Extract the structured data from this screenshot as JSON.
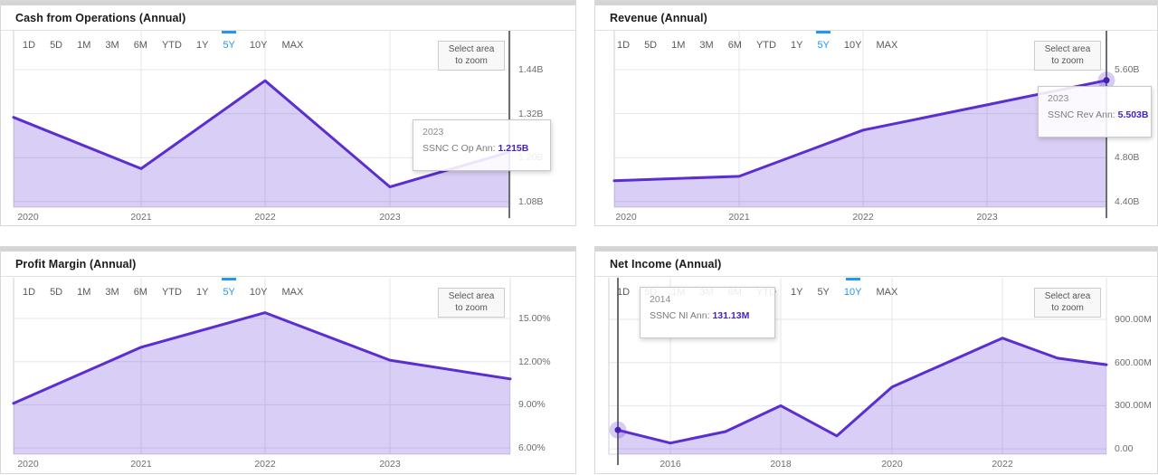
{
  "range_options": [
    "1D",
    "5D",
    "1M",
    "3M",
    "6M",
    "YTD",
    "1Y",
    "5Y",
    "10Y",
    "MAX"
  ],
  "zoom_button": [
    "Select area",
    "to zoom"
  ],
  "colors": {
    "line": "#5b2ed1",
    "fill": "rgba(96,52,212,0.24)",
    "selected_range": "#2196f3",
    "value_text": "#4722c4",
    "crosshair": "#6b6f73",
    "gridline": "#e6e6e6"
  },
  "panels": [
    {
      "title": "Cash from Operations (Annual)",
      "selected_range": "5Y",
      "series_name": "SSNC C Op Ann",
      "y_ticks": [
        {
          "label": "1.44B",
          "value": 1.44
        },
        {
          "label": "1.32B",
          "value": 1.32
        },
        {
          "label": "1.20B",
          "value": 1.2
        },
        {
          "label": "1.08B",
          "value": 1.08
        }
      ],
      "x_ticks": [
        "2020",
        "2021",
        "2022",
        "2023"
      ],
      "points": [
        {
          "year": 2019,
          "value": 1.31
        },
        {
          "year": 2020,
          "value": 1.17
        },
        {
          "year": 2021,
          "value": 1.41
        },
        {
          "year": 2022,
          "value": 1.12
        },
        {
          "year": 2023,
          "value": 1.215
        }
      ],
      "hover": {
        "year": 2023,
        "show_marker": false,
        "tooltip": {
          "title": "2023",
          "label": "SSNC C Op Ann:",
          "value": "1.215B"
        }
      }
    },
    {
      "title": "Revenue (Annual)",
      "selected_range": "5Y",
      "series_name": "SSNC Rev Ann",
      "y_ticks": [
        {
          "label": "5.60B",
          "value": 5.6
        },
        {
          "label": "5.20B",
          "value": 5.2
        },
        {
          "label": "4.80B",
          "value": 4.8
        },
        {
          "label": "4.40B",
          "value": 4.4
        }
      ],
      "x_ticks": [
        "2020",
        "2021",
        "2022",
        "2023"
      ],
      "points": [
        {
          "year": 2019,
          "value": 4.59
        },
        {
          "year": 2020,
          "value": 4.63
        },
        {
          "year": 2021,
          "value": 5.05
        },
        {
          "year": 2022,
          "value": 5.28
        },
        {
          "year": 2023,
          "value": 5.503
        }
      ],
      "hover": {
        "year": 2023,
        "show_marker": true,
        "tooltip": {
          "title": "2023",
          "label": "SSNC Rev Ann:",
          "value": "5.503B"
        }
      }
    },
    {
      "title": "Profit Margin (Annual)",
      "selected_range": "5Y",
      "y_ticks": [
        {
          "label": "15.00%",
          "value": 15
        },
        {
          "label": "12.00%",
          "value": 12
        },
        {
          "label": "9.00%",
          "value": 9
        },
        {
          "label": "6.00%",
          "value": 6
        }
      ],
      "x_ticks": [
        "2020",
        "2021",
        "2022",
        "2023"
      ],
      "points": [
        {
          "year": 2019,
          "value": 9.1
        },
        {
          "year": 2020,
          "value": 13.0
        },
        {
          "year": 2021,
          "value": 15.4
        },
        {
          "year": 2022,
          "value": 12.1
        },
        {
          "year": 2023,
          "value": 10.8
        }
      ],
      "hover": null
    },
    {
      "title": "Net Income (Annual)",
      "selected_range": "10Y",
      "series_name": "SSNC NI Ann",
      "y_ticks": [
        {
          "label": "900.00M",
          "value": 900
        },
        {
          "label": "600.00M",
          "value": 600
        },
        {
          "label": "300.00M",
          "value": 300
        },
        {
          "label": "0.00",
          "value": 0
        }
      ],
      "x_ticks": [
        "2016",
        "2018",
        "2020",
        "2022"
      ],
      "points": [
        {
          "year": 2014,
          "value": 131.13
        },
        {
          "year": 2015,
          "value": 40
        },
        {
          "year": 2016,
          "value": 120
        },
        {
          "year": 2017,
          "value": 300
        },
        {
          "year": 2018,
          "value": 90
        },
        {
          "year": 2019,
          "value": 430
        },
        {
          "year": 2020,
          "value": 600
        },
        {
          "year": 2021,
          "value": 770
        },
        {
          "year": 2022,
          "value": 630
        },
        {
          "year": 2023,
          "value": 585
        }
      ],
      "hover": {
        "year": 2014,
        "show_marker": true,
        "tooltip": {
          "title": "2014",
          "label": "SSNC NI Ann:",
          "value": "131.13M"
        }
      }
    }
  ],
  "chart_data": [
    {
      "type": "area",
      "title": "Cash from Operations (Annual)",
      "series": [
        {
          "name": "SSNC C Op Ann",
          "x": [
            2019,
            2020,
            2021,
            2022,
            2023
          ],
          "values": [
            1.31,
            1.17,
            1.41,
            1.12,
            1.215
          ]
        }
      ],
      "unit": "billions USD",
      "ylim": [
        1.06,
        1.55
      ],
      "yticks": [
        "1.08B",
        "1.20B",
        "1.32B",
        "1.44B"
      ],
      "xticks": [
        "2020",
        "2021",
        "2022",
        "2023"
      ],
      "grid": true,
      "legend": false
    },
    {
      "type": "area",
      "title": "Revenue (Annual)",
      "series": [
        {
          "name": "SSNC Rev Ann",
          "x": [
            2019,
            2020,
            2021,
            2022,
            2023
          ],
          "values": [
            4.59,
            4.63,
            5.05,
            5.28,
            5.503
          ]
        }
      ],
      "unit": "billions USD",
      "ylim": [
        4.35,
        5.95
      ],
      "yticks": [
        "4.40B",
        "4.80B",
        "5.20B",
        "5.60B"
      ],
      "xticks": [
        "2020",
        "2021",
        "2022",
        "2023"
      ],
      "grid": true,
      "legend": false
    },
    {
      "type": "area",
      "title": "Profit Margin (Annual)",
      "series": [
        {
          "name": "",
          "x": [
            2019,
            2020,
            2021,
            2022,
            2023
          ],
          "values": [
            9.1,
            13.0,
            15.4,
            12.1,
            10.8
          ]
        }
      ],
      "unit": "percent",
      "ylim": [
        5.8,
        16.7
      ],
      "yticks": [
        "6.00%",
        "9.00%",
        "12.00%",
        "15.00%"
      ],
      "xticks": [
        "2020",
        "2021",
        "2022",
        "2023"
      ],
      "grid": true,
      "legend": false
    },
    {
      "type": "area",
      "title": "Net Income (Annual)",
      "series": [
        {
          "name": "SSNC NI Ann",
          "x": [
            2014,
            2015,
            2016,
            2017,
            2018,
            2019,
            2020,
            2021,
            2022,
            2023
          ],
          "values": [
            131.13,
            40,
            120,
            300,
            90,
            430,
            600,
            770,
            630,
            585
          ]
        }
      ],
      "unit": "millions USD",
      "ylim": [
        -40,
        1100
      ],
      "yticks": [
        "0.00",
        "300.00M",
        "600.00M",
        "900.00M"
      ],
      "xticks": [
        "2016",
        "2018",
        "2020",
        "2022"
      ],
      "grid": true,
      "legend": false
    }
  ]
}
